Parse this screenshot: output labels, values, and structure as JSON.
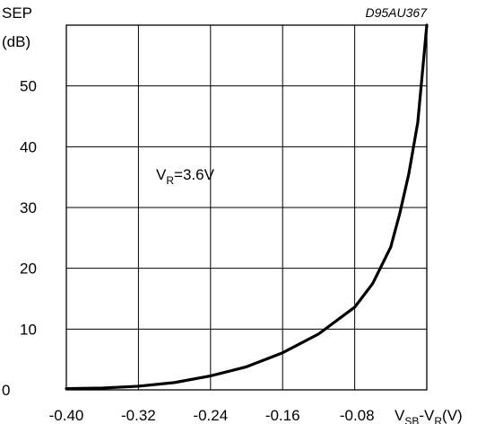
{
  "chart_data": {
    "type": "line",
    "ylabel_line1": "SEP",
    "ylabel_line2": "(dB)",
    "xlabel_main": "V",
    "xlabel_sub1": "SB",
    "xlabel_mid": "-V",
    "xlabel_sub2": "R",
    "xlabel_unit": "(V)",
    "figure_code": "D95AU367",
    "annotation_main": "V",
    "annotation_sub": "R",
    "annotation_value": "=3.6V",
    "xlim": [
      -0.4,
      0.0
    ],
    "ylim": [
      0,
      60
    ],
    "xticks": [
      -0.4,
      -0.32,
      -0.24,
      -0.16,
      -0.08
    ],
    "xtick_labels": [
      "-0.40",
      "-0.32",
      "-0.24",
      "-0.16",
      "-0.08"
    ],
    "yticks": [
      0,
      10,
      20,
      30,
      40,
      50
    ],
    "ytick_labels": [
      "0",
      "10",
      "20",
      "30",
      "40",
      "50"
    ],
    "grid": true,
    "series": [
      {
        "x": [
          -0.4,
          -0.36,
          -0.32,
          -0.28,
          -0.24,
          -0.2,
          -0.16,
          -0.12,
          -0.08,
          -0.06,
          -0.04,
          -0.03,
          -0.02,
          -0.01,
          -0.005,
          0.0
        ],
        "y": [
          0.2,
          0.3,
          0.6,
          1.2,
          2.3,
          3.8,
          6.1,
          9.2,
          13.6,
          17.5,
          23.5,
          29.0,
          35.5,
          44.0,
          52.0,
          60.0
        ]
      }
    ]
  }
}
